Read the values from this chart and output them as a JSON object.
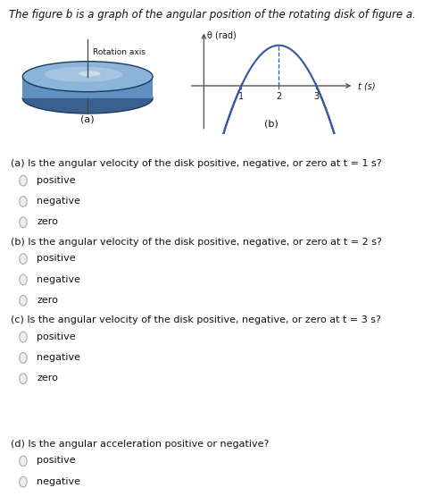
{
  "title": "The figure b is a graph of the angular position of the rotating disk of figure a.",
  "title_fontsize": 8.5,
  "bg_color": "#ffffff",
  "questions": [
    {
      "label": "(a) Is the angular velocity of the disk positive, negative, or zero at t = 1 s?",
      "options": [
        "positive",
        "negative",
        "zero"
      ]
    },
    {
      "label": "(b) Is the angular velocity of the disk positive, negative, or zero at t = 2 s?",
      "options": [
        "positive",
        "negative",
        "zero"
      ]
    },
    {
      "label": "(c) Is the angular velocity of the disk positive, negative, or zero at t = 3 s?",
      "options": [
        "positive",
        "negative",
        "zero"
      ]
    },
    {
      "label": "(d) Is the angular acceleration positive or negative?",
      "options": [
        "positive",
        "negative"
      ]
    }
  ],
  "disk_label": "(a)",
  "graph_label": "(b)",
  "graph_xlabel": "t (s)",
  "graph_ylabel": "θ (rad)",
  "rotation_axis_label": "Rotation axis",
  "curve_color": "#3355aa",
  "axis_color": "#555555",
  "text_color": "#111111",
  "radio_color": "#aaaaaa"
}
